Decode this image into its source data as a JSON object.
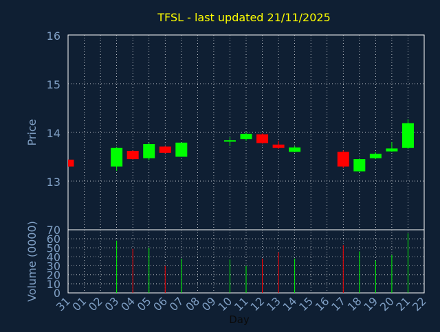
{
  "chart_data": [
    {
      "type": "candlestick",
      "title": "TFSL - last updated 21/11/2025",
      "ylabel": "Price",
      "ylim": [
        13,
        16
      ],
      "yticks": [
        13,
        14,
        15,
        16
      ],
      "grid": true,
      "x_categories": [
        "31",
        "01",
        "02",
        "03",
        "04",
        "05",
        "06",
        "07",
        "08",
        "09",
        "10",
        "11",
        "12",
        "13",
        "14",
        "15",
        "16",
        "17",
        "18",
        "19",
        "20",
        "21",
        "22"
      ],
      "candles": [
        {
          "day": "31",
          "open": 13.44,
          "close": 13.3,
          "high": 13.44,
          "low": 13.3
        },
        {
          "day": "03",
          "open": 13.3,
          "close": 13.68,
          "high": 13.7,
          "low": 13.21
        },
        {
          "day": "04",
          "open": 13.62,
          "close": 13.45,
          "high": 13.63,
          "low": 13.44
        },
        {
          "day": "05",
          "open": 13.47,
          "close": 13.76,
          "high": 13.79,
          "low": 13.43
        },
        {
          "day": "06",
          "open": 13.71,
          "close": 13.58,
          "high": 13.72,
          "low": 13.57
        },
        {
          "day": "07",
          "open": 13.5,
          "close": 13.79,
          "high": 13.79,
          "low": 13.5
        },
        {
          "day": "10",
          "open": 13.81,
          "close": 13.84,
          "high": 13.9,
          "low": 13.72
        },
        {
          "day": "11",
          "open": 13.86,
          "close": 13.97,
          "high": 14.0,
          "low": 13.83
        },
        {
          "day": "12",
          "open": 13.96,
          "close": 13.78,
          "high": 13.98,
          "low": 13.77
        },
        {
          "day": "13",
          "open": 13.75,
          "close": 13.68,
          "high": 13.83,
          "low": 13.66
        },
        {
          "day": "14",
          "open": 13.6,
          "close": 13.69,
          "high": 13.72,
          "low": 13.59
        },
        {
          "day": "17",
          "open": 13.6,
          "close": 13.3,
          "high": 13.63,
          "low": 13.27
        },
        {
          "day": "18",
          "open": 13.2,
          "close": 13.45,
          "high": 13.46,
          "low": 13.19
        },
        {
          "day": "19",
          "open": 13.47,
          "close": 13.56,
          "high": 13.59,
          "low": 13.45
        },
        {
          "day": "20",
          "open": 13.61,
          "close": 13.67,
          "high": 13.8,
          "low": 13.6
        },
        {
          "day": "21",
          "open": 13.68,
          "close": 14.19,
          "high": 14.27,
          "low": 13.66
        }
      ]
    },
    {
      "type": "bar",
      "ylabel": "Volume (0000)",
      "xlabel": "Day",
      "ylim": [
        0,
        70
      ],
      "yticks": [
        0,
        10,
        20,
        30,
        40,
        50,
        60,
        70
      ],
      "grid": true,
      "categories": [
        "03",
        "04",
        "05",
        "06",
        "07",
        "10",
        "11",
        "12",
        "13",
        "14",
        "17",
        "18",
        "19",
        "20",
        "21"
      ],
      "values": [
        58,
        49,
        50,
        30,
        38,
        37,
        30,
        38,
        45,
        38,
        53,
        46,
        36,
        42,
        66
      ],
      "directions": [
        "up",
        "down",
        "up",
        "down",
        "up",
        "up",
        "up",
        "down",
        "down",
        "up",
        "down",
        "up",
        "up",
        "up",
        "up"
      ]
    }
  ],
  "colors": {
    "background": "#0f1f33",
    "axis_text": "#7f9fc4",
    "title": "#ffff00",
    "frame": "#ffffff",
    "grid": "#ffffff",
    "up": "#00ff00",
    "down": "#ff0000"
  }
}
